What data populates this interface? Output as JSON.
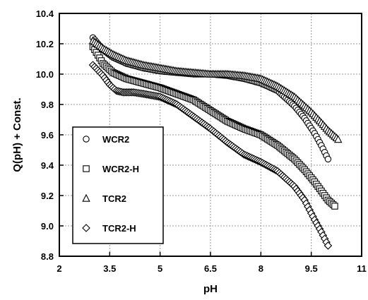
{
  "chart_data": {
    "type": "scatter",
    "xlabel": "pH",
    "ylabel": "Q(pH) + Const.",
    "xlim": [
      2,
      11
    ],
    "ylim": [
      8.8,
      10.4
    ],
    "xticks": [
      "2",
      "3.5",
      "5",
      "6.5",
      "8",
      "9.5",
      "11"
    ],
    "yticks": [
      "8.8",
      "9.0",
      "9.2",
      "9.4",
      "9.6",
      "9.8",
      "10.0",
      "10.2",
      "10.4"
    ],
    "grid": true,
    "legend_position": "left",
    "series": [
      {
        "name": "WCR2",
        "marker": "circle",
        "x": [
          3.0,
          3.3,
          3.6,
          4.0,
          4.5,
          5.0,
          5.5,
          6.0,
          6.5,
          7.0,
          7.5,
          8.0,
          8.5,
          9.0,
          9.3,
          9.6,
          9.8,
          10.0
        ],
        "y": [
          10.24,
          10.16,
          10.11,
          10.07,
          10.04,
          10.02,
          10.01,
          10.0,
          10.0,
          9.99,
          9.97,
          9.94,
          9.89,
          9.79,
          9.71,
          9.61,
          9.53,
          9.44
        ]
      },
      {
        "name": "WCR2-H",
        "marker": "square",
        "x": [
          3.0,
          3.3,
          3.6,
          4.0,
          4.5,
          5.0,
          5.5,
          6.0,
          6.5,
          7.0,
          7.5,
          8.0,
          8.5,
          9.0,
          9.3,
          9.6,
          9.8,
          10.0,
          10.2
        ],
        "y": [
          10.18,
          10.07,
          10.01,
          9.97,
          9.94,
          9.91,
          9.87,
          9.83,
          9.76,
          9.69,
          9.64,
          9.6,
          9.53,
          9.44,
          9.37,
          9.29,
          9.23,
          9.17,
          9.13
        ]
      },
      {
        "name": "TCR2",
        "marker": "triangle",
        "x": [
          3.0,
          3.3,
          3.6,
          4.0,
          4.5,
          5.0,
          5.5,
          6.0,
          6.5,
          7.0,
          7.5,
          8.0,
          8.5,
          9.0,
          9.5,
          9.8,
          10.0,
          10.3
        ],
        "y": [
          10.22,
          10.17,
          10.13,
          10.09,
          10.06,
          10.04,
          10.02,
          10.01,
          10.0,
          10.0,
          9.99,
          9.97,
          9.92,
          9.85,
          9.75,
          9.68,
          9.63,
          9.57
        ]
      },
      {
        "name": "TCR2-H",
        "marker": "diamond",
        "x": [
          3.0,
          3.3,
          3.5,
          3.7,
          3.9,
          4.2,
          4.5,
          5.0,
          5.5,
          6.0,
          6.5,
          7.0,
          7.5,
          8.0,
          8.5,
          9.0,
          9.3,
          9.6,
          9.8,
          10.0
        ],
        "y": [
          10.06,
          9.99,
          9.93,
          9.89,
          9.88,
          9.88,
          9.87,
          9.85,
          9.8,
          9.72,
          9.64,
          9.55,
          9.47,
          9.42,
          9.36,
          9.26,
          9.17,
          9.04,
          8.96,
          8.87
        ]
      }
    ]
  }
}
